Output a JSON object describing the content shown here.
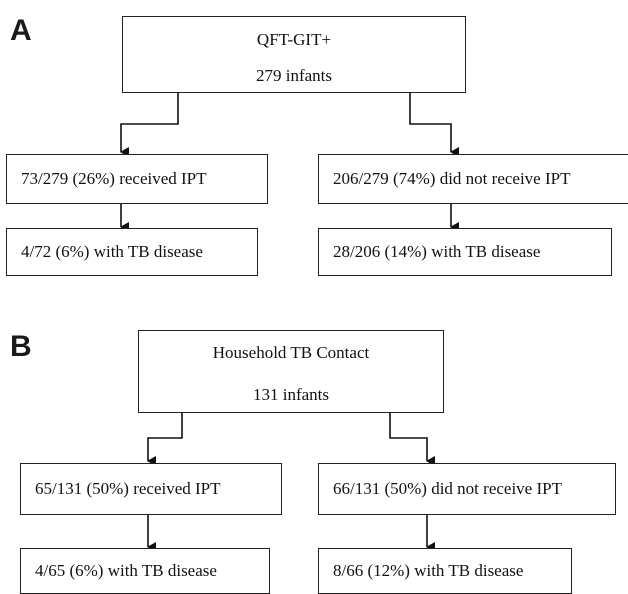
{
  "panel_a": {
    "label": "A",
    "root": {
      "line1": "QFT-GIT+",
      "line2": "279 infants"
    },
    "left": {
      "ipt": "73/279 (26%) received IPT",
      "outcome": "4/72 (6%) with TB disease"
    },
    "right": {
      "ipt": "206/279 (74%) did not receive IPT",
      "outcome": "28/206 (14%) with TB disease"
    }
  },
  "panel_b": {
    "label": "B",
    "root": {
      "line1": "Household TB Contact",
      "line2": "131 infants"
    },
    "left": {
      "ipt": "65/131 (50%) received IPT",
      "outcome": "4/65 (6%) with TB disease"
    },
    "right": {
      "ipt": "66/131 (50%) did not receive IPT",
      "outcome": "8/66 (12%) with TB disease"
    }
  }
}
